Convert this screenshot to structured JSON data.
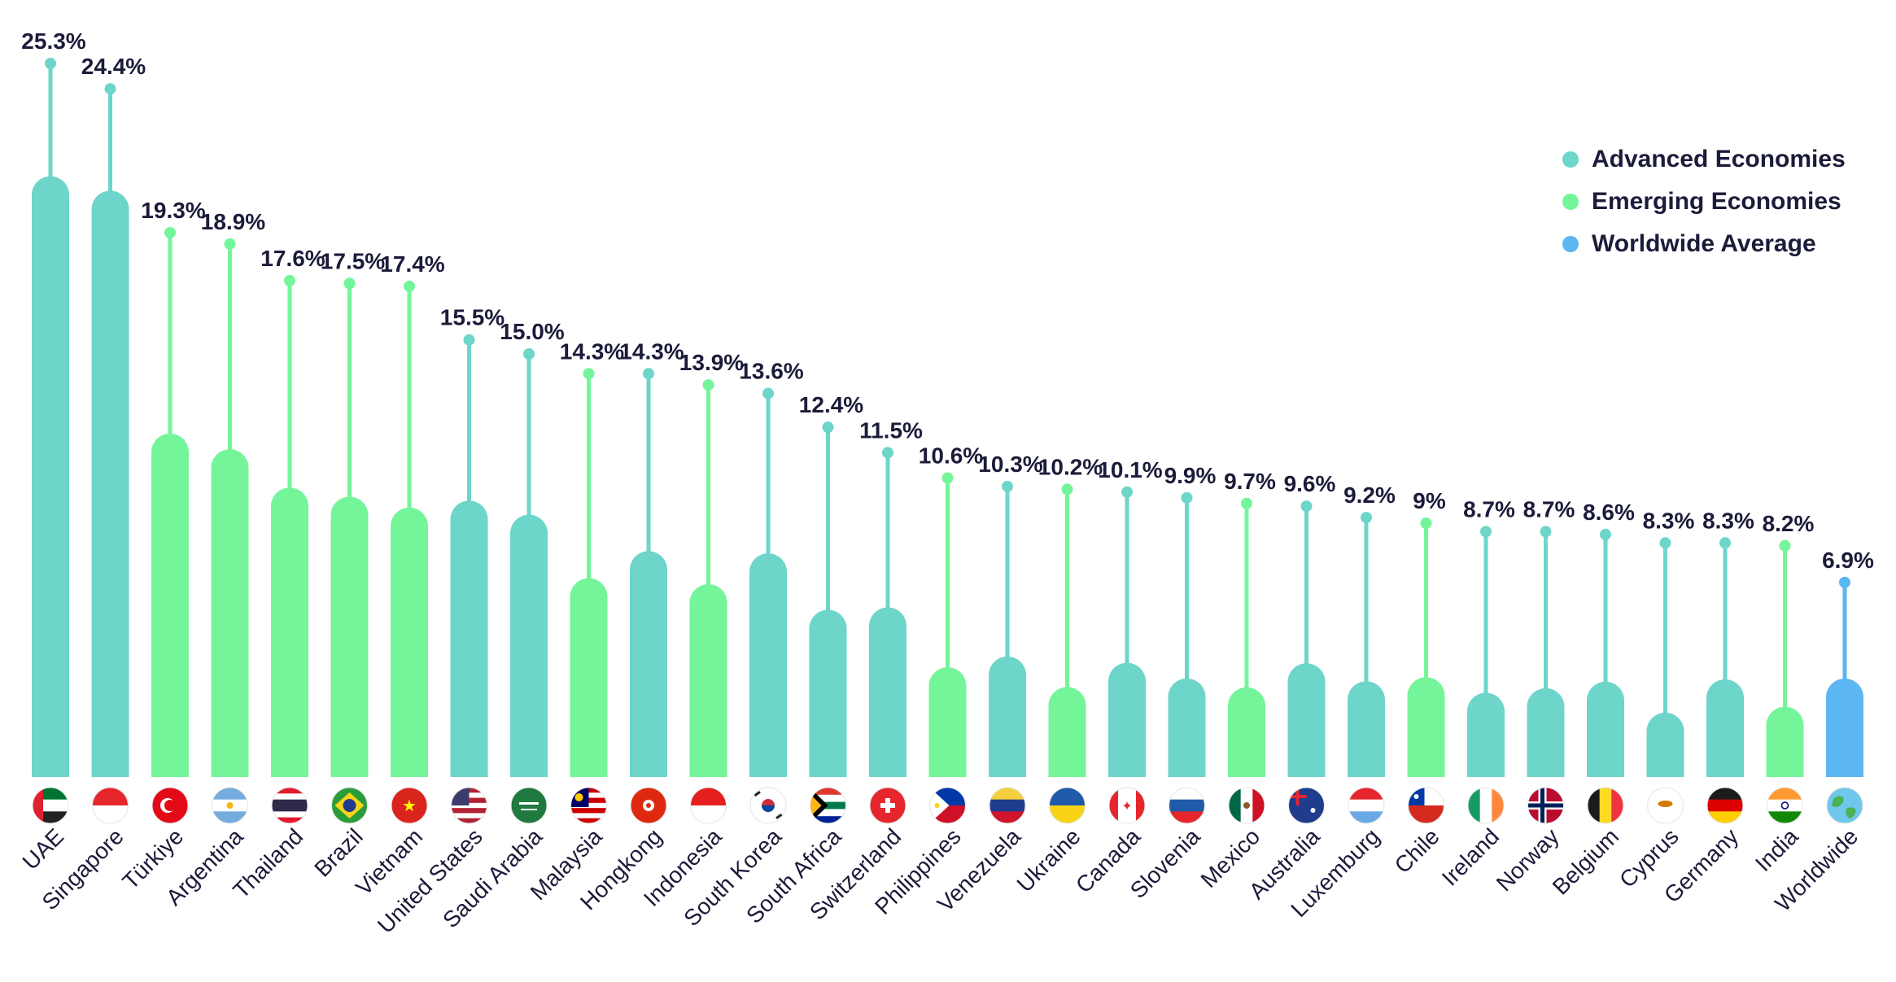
{
  "chart_data": {
    "type": "bar",
    "title": "",
    "xlabel": "",
    "ylabel": "",
    "ylim": [
      0,
      25.3
    ],
    "grid": false,
    "legend_position": "top-right",
    "legend": [
      {
        "label": "Advanced Economies",
        "color": "#6dd5c9"
      },
      {
        "label": "Emerging Economies",
        "color": "#74f59a"
      },
      {
        "label": "Worldwide Average",
        "color": "#5bb6f2"
      }
    ],
    "categories": [
      "UAE",
      "Singapore",
      "Türkiye",
      "Argentina",
      "Thailand",
      "Brazil",
      "Vietnam",
      "United States",
      "Saudi Arabia",
      "Malaysia",
      "Hongkong",
      "Indonesia",
      "South Korea",
      "South Africa",
      "Switzerland",
      "Philippines",
      "Venezuela",
      "Ukraine",
      "Canada",
      "Slovenia",
      "Mexico",
      "Australia",
      "Luxemburg",
      "Chile",
      "Ireland",
      "Norway",
      "Belgium",
      "Cyprus",
      "Germany",
      "India",
      "Worldwide"
    ],
    "values": [
      25.3,
      24.4,
      19.3,
      18.9,
      17.6,
      17.5,
      17.4,
      15.5,
      15.0,
      14.3,
      14.3,
      13.9,
      13.6,
      12.4,
      11.5,
      10.6,
      10.3,
      10.2,
      10.1,
      9.9,
      9.7,
      9.6,
      9.2,
      9,
      8.7,
      8.7,
      8.6,
      8.3,
      8.3,
      8.2,
      6.9
    ],
    "value_labels": [
      "25.3%",
      "24.4%",
      "19.3%",
      "18.9%",
      "17.6%",
      "17.5%",
      "17.4%",
      "15.5%",
      "15.0%",
      "14.3%",
      "14.3%",
      "13.9%",
      "13.6%",
      "12.4%",
      "11.5%",
      "10.6%",
      "10.3%",
      "10.2%",
      "10.1%",
      "9.9%",
      "9.7%",
      "9.6%",
      "9.2%",
      "9%",
      "8.7%",
      "8.7%",
      "8.6%",
      "8.3%",
      "8.3%",
      "8.2%",
      "6.9%"
    ],
    "groups": [
      "advanced",
      "advanced",
      "emerging",
      "emerging",
      "emerging",
      "emerging",
      "emerging",
      "advanced",
      "advanced",
      "emerging",
      "advanced",
      "emerging",
      "advanced",
      "advanced",
      "advanced",
      "emerging",
      "advanced",
      "emerging",
      "advanced",
      "advanced",
      "emerging",
      "advanced",
      "advanced",
      "emerging",
      "advanced",
      "advanced",
      "advanced",
      "advanced",
      "advanced",
      "emerging",
      "worldwide"
    ],
    "bar_fraction": [
      0.842,
      0.852,
      0.631,
      0.615,
      0.583,
      0.568,
      0.549,
      0.632,
      0.62,
      0.493,
      0.56,
      0.492,
      0.583,
      0.478,
      0.523,
      0.367,
      0.415,
      0.313,
      0.401,
      0.353,
      0.328,
      0.42,
      0.369,
      0.393,
      0.343,
      0.362,
      0.393,
      0.275,
      0.417,
      0.304,
      0.506
    ],
    "group_colors": {
      "advanced": "#6dd5c9",
      "emerging": "#74f59a",
      "worldwide": "#5bb6f2"
    },
    "flags": [
      "flag-uae",
      "flag-singapore",
      "flag-turkiye",
      "flag-argentina",
      "flag-thailand",
      "flag-brazil",
      "flag-vietnam",
      "flag-united-states",
      "flag-saudi-arabia",
      "flag-malaysia",
      "flag-hongkong",
      "flag-indonesia",
      "flag-south-korea",
      "flag-south-africa",
      "flag-switzerland",
      "flag-philippines",
      "flag-venezuela",
      "flag-ukraine",
      "flag-canada",
      "flag-slovenia",
      "flag-mexico",
      "flag-australia",
      "flag-luxemburg",
      "flag-chile",
      "flag-ireland",
      "flag-norway",
      "flag-belgium",
      "flag-cyprus",
      "flag-germany",
      "flag-india",
      "globe-icon"
    ]
  }
}
